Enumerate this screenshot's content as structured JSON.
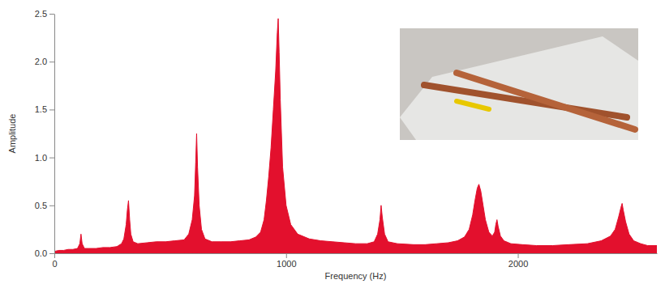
{
  "chart_data": {
    "type": "area",
    "x_label": "Frequency (Hz)",
    "y_label": "Amplitude",
    "color": "#e3102d",
    "grid": false,
    "xlim": [
      0,
      2600
    ],
    "xticks": [
      0,
      1000,
      2000
    ],
    "ylim": [
      0,
      2.5
    ],
    "yticks": [
      {
        "value": 0,
        "label": "0.0"
      },
      0.5,
      {
        "value": 1,
        "label": "1.0"
      },
      1.5,
      {
        "value": 2,
        "label": "2.0"
      },
      2.5
    ],
    "x": [
      0,
      20,
      40,
      60,
      80,
      100,
      110,
      115,
      120,
      130,
      150,
      180,
      210,
      240,
      270,
      290,
      300,
      310,
      315,
      320,
      325,
      330,
      340,
      360,
      400,
      440,
      480,
      520,
      560,
      580,
      595,
      605,
      610,
      614,
      618,
      625,
      635,
      650,
      680,
      720,
      760,
      800,
      840,
      870,
      890,
      905,
      915,
      925,
      935,
      945,
      955,
      962,
      966,
      970,
      975,
      985,
      1000,
      1020,
      1050,
      1100,
      1150,
      1200,
      1250,
      1300,
      1350,
      1380,
      1395,
      1405,
      1410,
      1415,
      1425,
      1440,
      1480,
      1550,
      1600,
      1650,
      1700,
      1740,
      1770,
      1790,
      1805,
      1815,
      1825,
      1832,
      1840,
      1850,
      1860,
      1875,
      1890,
      1900,
      1905,
      1910,
      1915,
      1925,
      1940,
      1970,
      2020,
      2080,
      2150,
      2220,
      2300,
      2360,
      2400,
      2420,
      2435,
      2445,
      2450,
      2455,
      2465,
      2480,
      2500,
      2530,
      2560,
      2600
    ],
    "values": [
      0.02,
      0.03,
      0.03,
      0.04,
      0.04,
      0.05,
      0.1,
      0.2,
      0.1,
      0.05,
      0.05,
      0.05,
      0.06,
      0.06,
      0.07,
      0.1,
      0.15,
      0.3,
      0.45,
      0.55,
      0.35,
      0.2,
      0.12,
      0.1,
      0.11,
      0.12,
      0.12,
      0.13,
      0.14,
      0.2,
      0.35,
      0.6,
      0.95,
      1.25,
      0.9,
      0.5,
      0.25,
      0.15,
      0.12,
      0.12,
      0.12,
      0.13,
      0.14,
      0.17,
      0.22,
      0.35,
      0.55,
      0.8,
      1.1,
      1.5,
      1.9,
      2.3,
      2.45,
      2.1,
      1.6,
      0.9,
      0.5,
      0.3,
      0.2,
      0.15,
      0.13,
      0.12,
      0.11,
      0.1,
      0.1,
      0.12,
      0.2,
      0.35,
      0.5,
      0.38,
      0.2,
      0.12,
      0.1,
      0.09,
      0.09,
      0.1,
      0.11,
      0.13,
      0.17,
      0.25,
      0.4,
      0.55,
      0.68,
      0.72,
      0.65,
      0.5,
      0.35,
      0.22,
      0.18,
      0.22,
      0.3,
      0.35,
      0.28,
      0.18,
      0.13,
      0.1,
      0.09,
      0.08,
      0.08,
      0.09,
      0.1,
      0.13,
      0.18,
      0.25,
      0.38,
      0.48,
      0.52,
      0.45,
      0.33,
      0.2,
      0.13,
      0.1,
      0.08,
      0.08
    ]
  }
}
